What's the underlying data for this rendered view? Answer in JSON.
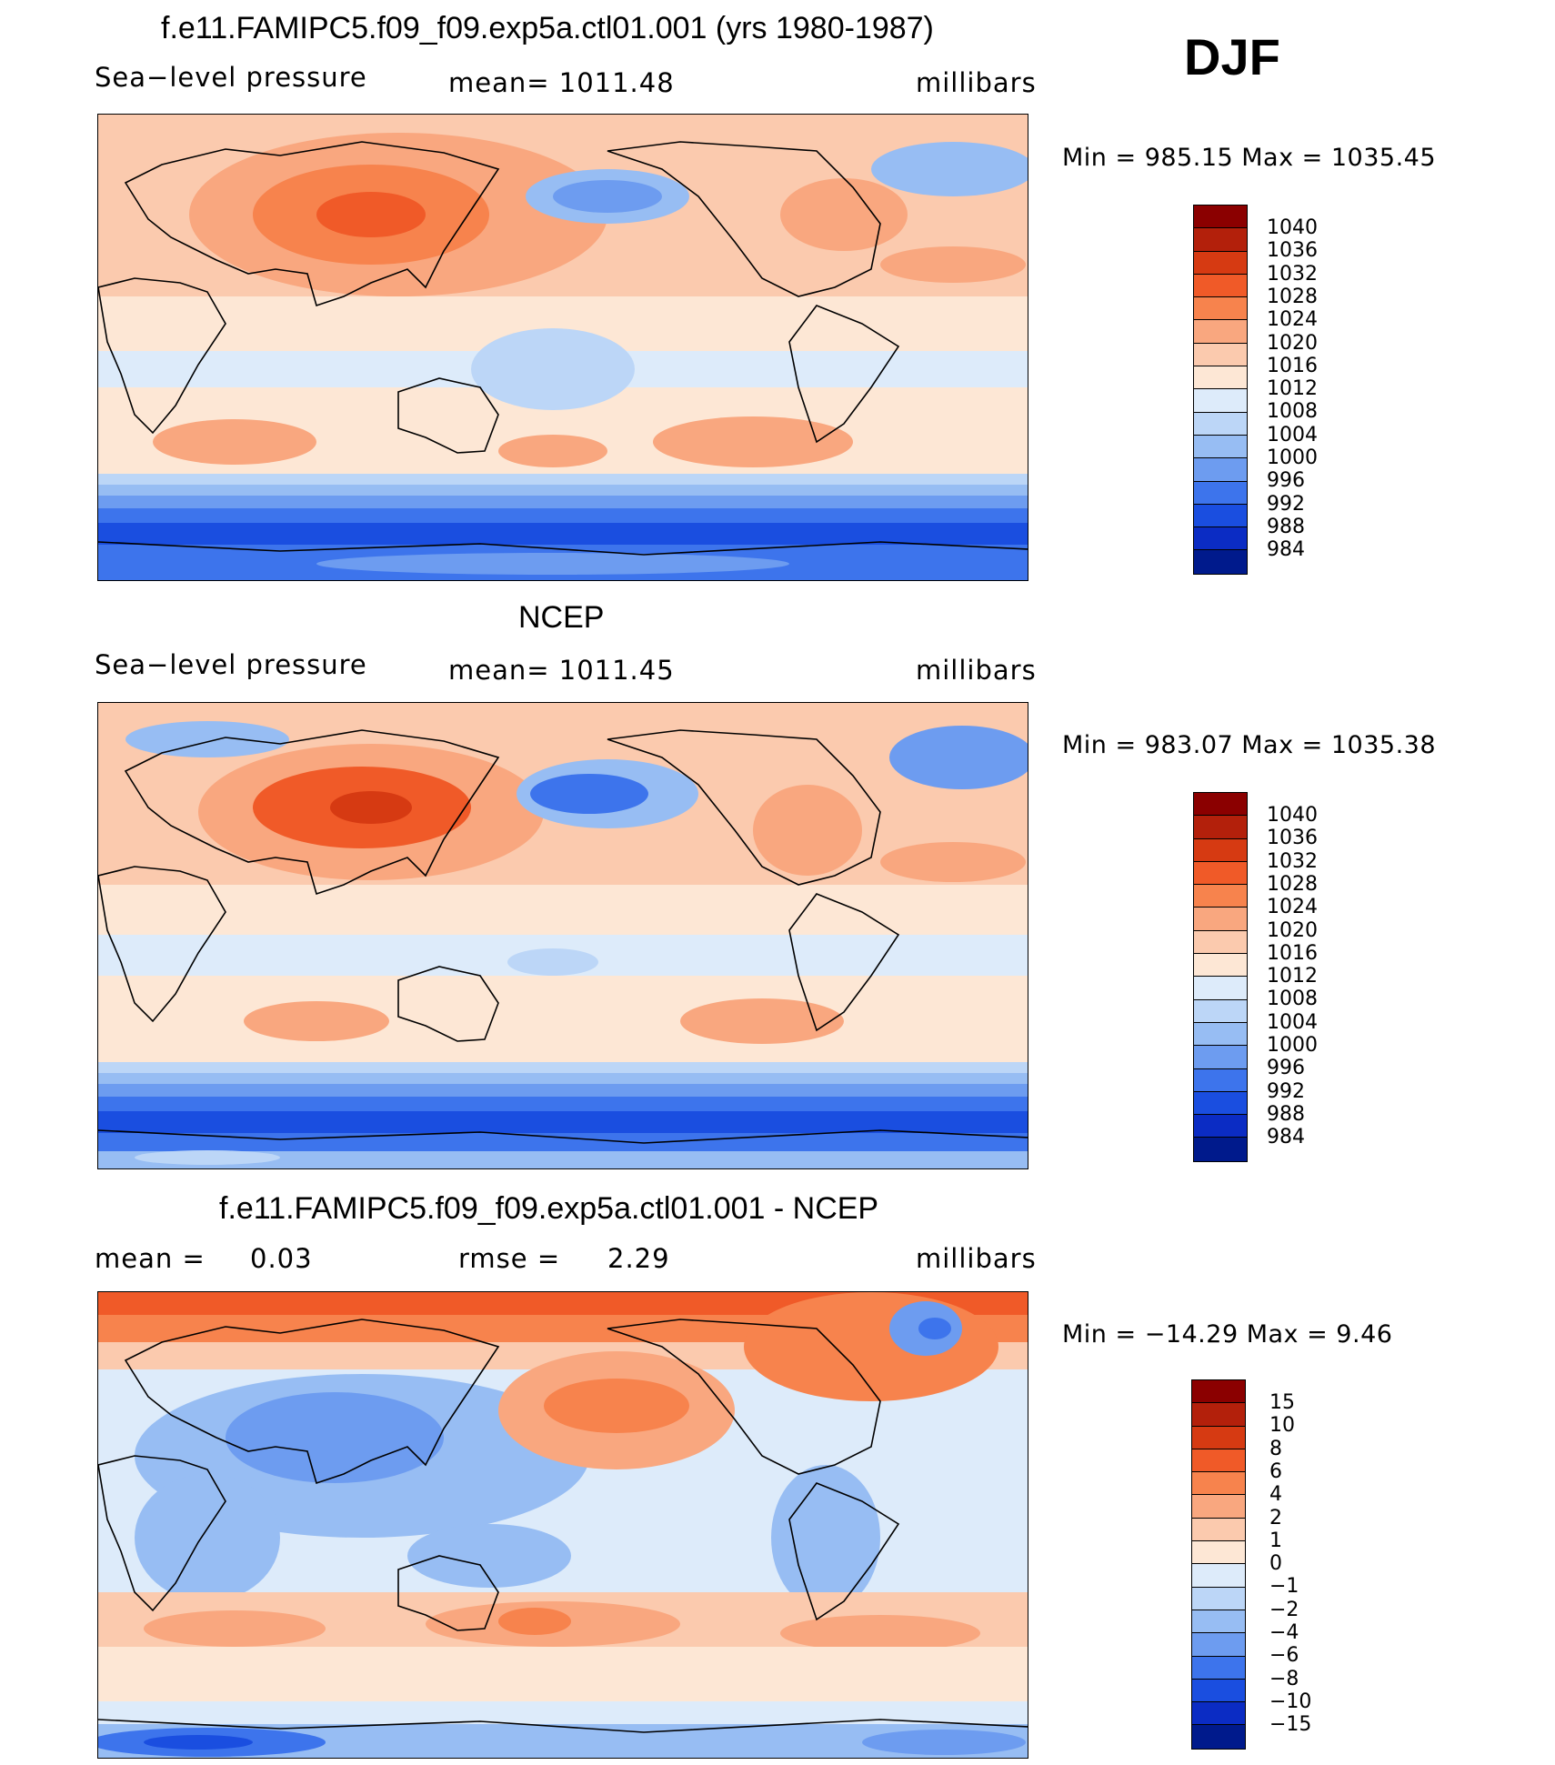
{
  "season": "DJF",
  "panels": [
    {
      "title": "f.e11.FAMIPC5.f09_f09.exp5a.ctl01.001 (yrs 1980-1987)",
      "left_label": "Sea−level pressure",
      "center_label": "mean=  1011.48",
      "right_label": "millibars",
      "minmax": "Min  =  985.15  Max  =  1035.45"
    },
    {
      "title": "NCEP",
      "left_label": "Sea−level pressure",
      "center_label": "mean=  1011.45",
      "right_label": "millibars",
      "minmax": "Min  =  983.07  Max  =  1035.38"
    },
    {
      "title": "f.e11.FAMIPC5.f09_f09.exp5a.ctl01.001 - NCEP",
      "left_label": "mean  =",
      "left_value": "0.03",
      "center_label": "rmse  =",
      "center_value": "2.29",
      "right_label": "millibars",
      "minmax": "Min  =  −14.29  Max  =       9.46"
    }
  ],
  "colorbar_abs": {
    "labels": [
      "1040",
      "1036",
      "1032",
      "1028",
      "1024",
      "1020",
      "1016",
      "1012",
      "1008",
      "1004",
      "1000",
      "996",
      "992",
      "988",
      "984"
    ],
    "colors": [
      "#8b0000",
      "#b3200b",
      "#d63a12",
      "#f05a28",
      "#f7834d",
      "#f9a77f",
      "#fbcaae",
      "#fde7d5",
      "#ddebfa",
      "#bcd6f7",
      "#97bdf3",
      "#6d9cf0",
      "#3d74ec",
      "#1a4ee0",
      "#0b2cc4",
      "#001a8c"
    ]
  },
  "colorbar_diff": {
    "labels": [
      "15",
      "10",
      "8",
      "6",
      "4",
      "2",
      "1",
      "0",
      "−1",
      "−2",
      "−4",
      "−6",
      "−8",
      "−10",
      "−15"
    ],
    "colors": [
      "#8b0000",
      "#b3200b",
      "#d63a12",
      "#f05a28",
      "#f7834d",
      "#f9a77f",
      "#fbcaae",
      "#fde7d5",
      "#ddebfa",
      "#bcd6f7",
      "#97bdf3",
      "#6d9cf0",
      "#3d74ec",
      "#1a4ee0",
      "#0b2cc4",
      "#001a8c"
    ]
  }
}
